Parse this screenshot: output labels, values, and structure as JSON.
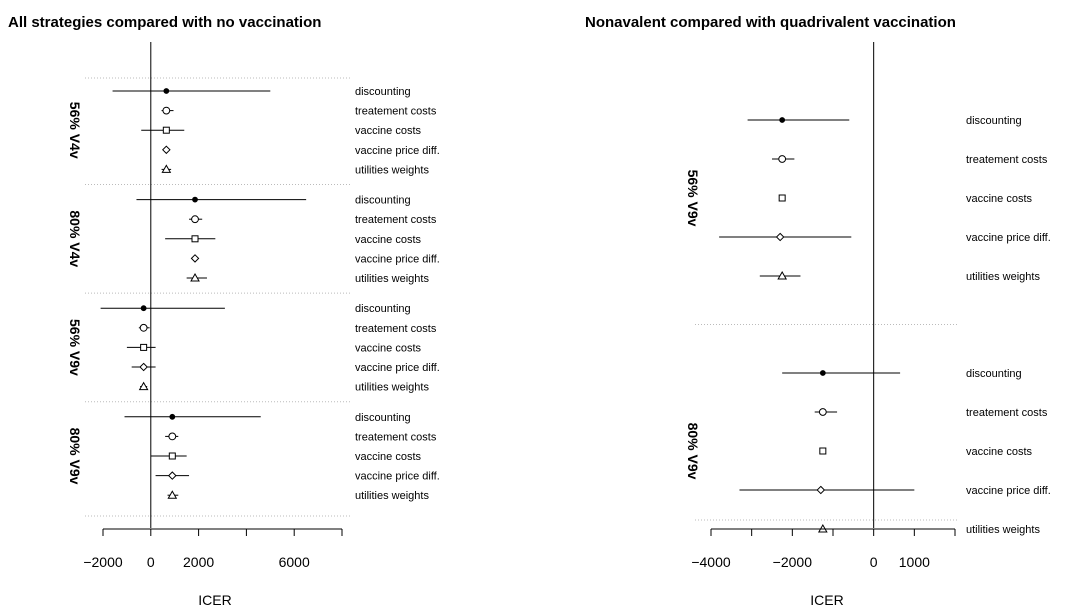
{
  "chart_data": [
    {
      "type": "forest",
      "title": "All strategies compared with no vaccination",
      "xlabel": "ICER",
      "xlim": [
        -2000,
        8000
      ],
      "xticks": [
        -2000,
        0,
        2000,
        6000
      ],
      "xtick_labels": [
        "−2000",
        "0",
        "2000",
        "6000"
      ],
      "reference_line": 0,
      "groups": [
        {
          "label": "56% V4v",
          "rows": [
            {
              "label": "discounting",
              "marker": "filled-circle",
              "point": 650,
              "low": -1600,
              "high": 5000
            },
            {
              "label": "treatement costs",
              "marker": "circle",
              "point": 650,
              "low": 450,
              "high": 950
            },
            {
              "label": "vaccine costs",
              "marker": "square",
              "point": 650,
              "low": -400,
              "high": 1400
            },
            {
              "label": "vaccine price diff.",
              "marker": "diamond",
              "point": 650,
              "low": 650,
              "high": 650
            },
            {
              "label": "utilities weights",
              "marker": "triangle",
              "point": 650,
              "low": 450,
              "high": 850
            }
          ]
        },
        {
          "label": "80% V4v",
          "rows": [
            {
              "label": "discounting",
              "marker": "filled-circle",
              "point": 1850,
              "low": -600,
              "high": 6500
            },
            {
              "label": "treatement costs",
              "marker": "circle",
              "point": 1850,
              "low": 1600,
              "high": 2150
            },
            {
              "label": "vaccine costs",
              "marker": "square",
              "point": 1850,
              "low": 600,
              "high": 2700
            },
            {
              "label": "vaccine price diff.",
              "marker": "diamond",
              "point": 1850,
              "low": 1850,
              "high": 1850
            },
            {
              "label": "utilities weights",
              "marker": "triangle",
              "point": 1850,
              "low": 1500,
              "high": 2350
            }
          ]
        },
        {
          "label": "56% V9v",
          "rows": [
            {
              "label": "discounting",
              "marker": "filled-circle",
              "point": -300,
              "low": -2100,
              "high": 3100
            },
            {
              "label": "treatement costs",
              "marker": "circle",
              "point": -300,
              "low": -500,
              "high": -50
            },
            {
              "label": "vaccine costs",
              "marker": "square",
              "point": -300,
              "low": -1000,
              "high": 200
            },
            {
              "label": "vaccine price diff.",
              "marker": "diamond",
              "point": -300,
              "low": -800,
              "high": 200
            },
            {
              "label": "utilities weights",
              "marker": "triangle",
              "point": -300,
              "low": -450,
              "high": -150
            }
          ]
        },
        {
          "label": "80% V9v",
          "rows": [
            {
              "label": "discounting",
              "marker": "filled-circle",
              "point": 900,
              "low": -1100,
              "high": 4600
            },
            {
              "label": "treatement costs",
              "marker": "circle",
              "point": 900,
              "low": 600,
              "high": 1150
            },
            {
              "label": "vaccine costs",
              "marker": "square",
              "point": 900,
              "low": 0,
              "high": 1500
            },
            {
              "label": "vaccine price diff.",
              "marker": "diamond",
              "point": 900,
              "low": 200,
              "high": 1600
            },
            {
              "label": "utilities weights",
              "marker": "triangle",
              "point": 900,
              "low": 700,
              "high": 1150
            }
          ]
        }
      ]
    },
    {
      "type": "forest",
      "title": "Nonavalent compared with quadrivalent vaccination",
      "xlabel": "ICER",
      "xlim": [
        -4000,
        2000
      ],
      "xticks": [
        -4000,
        -2000,
        0,
        1000
      ],
      "xtick_labels": [
        "−4000",
        "−2000",
        "0",
        "1000"
      ],
      "reference_line": 0,
      "groups": [
        {
          "label": "56% V9v",
          "rows": [
            {
              "label": "discounting",
              "marker": "filled-circle",
              "point": -2250,
              "low": -3100,
              "high": -600
            },
            {
              "label": "treatement costs",
              "marker": "circle",
              "point": -2250,
              "low": -2500,
              "high": -1950
            },
            {
              "label": "vaccine costs",
              "marker": "square",
              "point": -2250,
              "low": -2250,
              "high": -2250
            },
            {
              "label": "vaccine price diff.",
              "marker": "diamond",
              "point": -2300,
              "low": -3800,
              "high": -550
            },
            {
              "label": "utilities weights",
              "marker": "triangle",
              "point": -2250,
              "low": -2800,
              "high": -1800
            }
          ]
        },
        {
          "label": "80% V9v",
          "rows": [
            {
              "label": "discounting",
              "marker": "filled-circle",
              "point": -1250,
              "low": -2250,
              "high": 650
            },
            {
              "label": "treatement costs",
              "marker": "circle",
              "point": -1250,
              "low": -1450,
              "high": -900
            },
            {
              "label": "vaccine costs",
              "marker": "square",
              "point": -1250,
              "low": -1250,
              "high": -1250
            },
            {
              "label": "vaccine price diff.",
              "marker": "diamond",
              "point": -1300,
              "low": -3300,
              "high": 1000
            },
            {
              "label": "utilities weights",
              "marker": "triangle",
              "point": -1250,
              "low": -1600,
              "high": -950
            }
          ]
        }
      ]
    }
  ]
}
